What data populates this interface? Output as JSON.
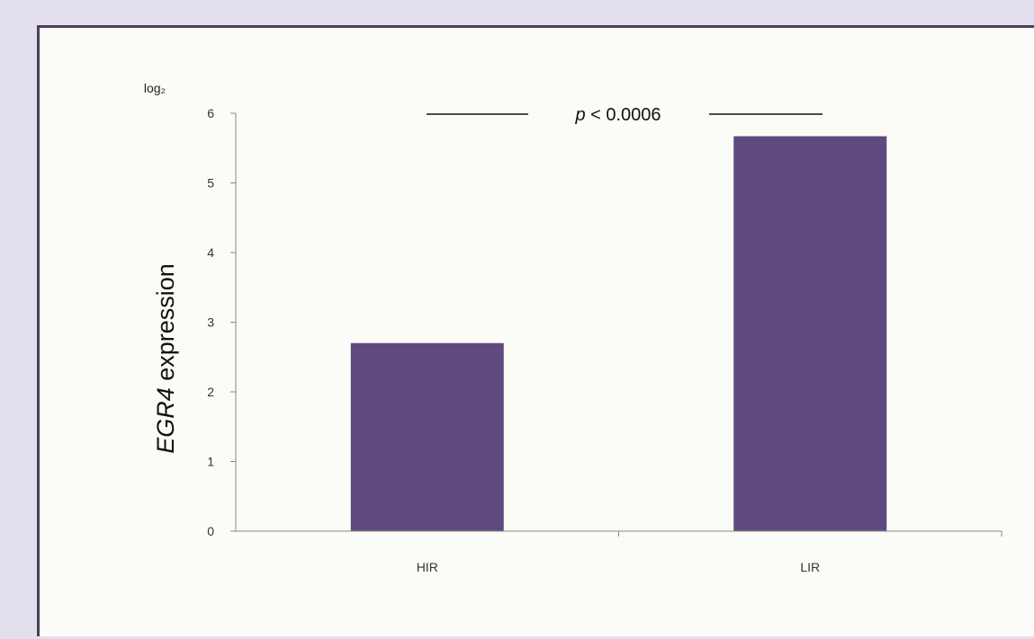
{
  "chart_data": {
    "type": "bar",
    "categories": [
      "HIR",
      "LIR"
    ],
    "values": [
      2.7,
      5.67
    ],
    "ylim": [
      0,
      6
    ],
    "yticks": [
      0,
      1,
      2,
      3,
      4,
      5,
      6
    ],
    "ylabel_italic": "EGR4",
    "ylabel_rest": " expression",
    "yunit": "log₂",
    "annotation": "p < 0.0006",
    "annotation_p": "p",
    "annotation_rest": " < 0.0006",
    "bar_color": "#5e4a7e",
    "grid": false,
    "legend": "none"
  }
}
